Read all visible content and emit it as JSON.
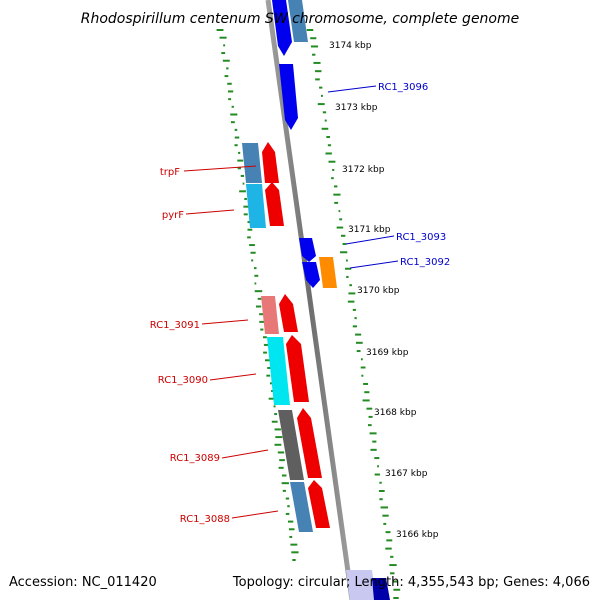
{
  "title": "Rhodospirillum centenum SW chromosome, complete genome",
  "accession": "Accession: NC_011420",
  "topology": "Topology: circular; Length: 4,355,543 bp; Genes: 4,066",
  "kbp_ticks": [
    "3174 kbp",
    "3173 kbp",
    "3172 kbp",
    "3171 kbp",
    "3170 kbp",
    "3169 kbp",
    "3168 kbp",
    "3167 kbp",
    "3166 kbp"
  ],
  "gene_labels": {
    "rc1_3096": "RC1_3096",
    "rc1_3093": "RC1_3093",
    "rc1_3092": "RC1_3092",
    "trpf": "trpF",
    "pyrf": "pyrF",
    "rc1_3091": "RC1_3091",
    "rc1_3090": "RC1_3090",
    "rc1_3089": "RC1_3089",
    "rc1_3088": "RC1_3088"
  },
  "colors": {
    "backbone": "#808080",
    "gc_dots": "#228b22",
    "label_blue": "#0000cc",
    "label_red": "#cc0000"
  }
}
